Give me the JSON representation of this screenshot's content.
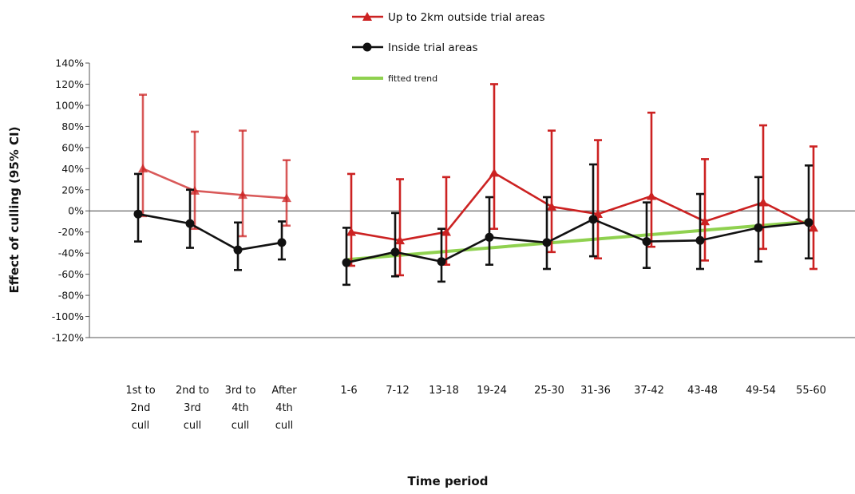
{
  "chart_data": {
    "type": "line",
    "ylabel": "Effect of culling (95% CI)",
    "xlabel": "Time period",
    "ylim": [
      -120,
      140
    ],
    "y_ticks": [
      "140%",
      "120%",
      "100%",
      "80%",
      "60%",
      "40%",
      "20%",
      "0%",
      "-20%",
      "-40%",
      "-60%",
      "-80%",
      "-100%",
      "-120%"
    ],
    "y_tick_values": [
      140,
      120,
      100,
      80,
      60,
      40,
      20,
      0,
      -20,
      -40,
      -60,
      -80,
      -100,
      -120
    ],
    "reference_line": 0,
    "grid": false,
    "legend_position": "top",
    "categories": [
      "1st to 2nd cull",
      "2nd to 3rd cull",
      "3rd to 4th cull",
      "After 4th cull",
      "1-6",
      "7-12",
      "13-18",
      "19-24",
      "25-30",
      "31-36",
      "37-42",
      "43-48",
      "49-54",
      "55-60"
    ],
    "category_lines": [
      [
        "1st to",
        "2nd",
        "cull"
      ],
      [
        "2nd to",
        "3rd",
        "cull"
      ],
      [
        "3rd to",
        "4th",
        "cull"
      ],
      [
        "After",
        "4th",
        "cull"
      ],
      [
        "1-6"
      ],
      [
        "7-12"
      ],
      [
        "13-18"
      ],
      [
        "19-24"
      ],
      [
        "25-30"
      ],
      [
        "31-36"
      ],
      [
        "37-42"
      ],
      [
        "43-48"
      ],
      [
        "49-54"
      ],
      [
        "55-60"
      ]
    ],
    "series": [
      {
        "name": "Up to 2km outside trial areas",
        "color": "#cc2222",
        "marker": "triangle",
        "groups": [
          {
            "values": [
              40,
              19,
              15,
              12
            ],
            "ci_upper": [
              110,
              75,
              76,
              48
            ],
            "ci_lower": [
              -5,
              -17,
              -24,
              -14
            ]
          },
          {
            "values": [
              -20,
              -28,
              -20,
              36,
              4,
              -3,
              14,
              -10,
              8,
              -16
            ],
            "ci_upper": [
              35,
              30,
              32,
              120,
              76,
              67,
              93,
              49,
              81,
              61
            ],
            "ci_lower": [
              -52,
              -61,
              -51,
              -17,
              -39,
              -45,
              -34,
              -47,
              -36,
              -55
            ]
          }
        ]
      },
      {
        "name": "Inside trial areas",
        "color": "#111111",
        "marker": "circle",
        "groups": [
          {
            "values": [
              -3,
              -12,
              -37,
              -30
            ],
            "ci_upper": [
              35,
              20,
              -11,
              -10
            ],
            "ci_lower": [
              -29,
              -35,
              -56,
              -46
            ]
          },
          {
            "values": [
              -49,
              -39,
              -48,
              -25,
              -30,
              -8,
              -29,
              -28,
              -16,
              -11
            ],
            "ci_upper": [
              -16,
              -2,
              -17,
              13,
              13,
              44,
              8,
              16,
              32,
              43
            ],
            "ci_lower": [
              -70,
              -62,
              -67,
              -51,
              -55,
              -43,
              -54,
              -55,
              -48,
              -45
            ]
          }
        ]
      },
      {
        "name": "fitted trend",
        "color": "#8fd14f",
        "marker": "none",
        "from_category": "1-6",
        "to_category": "55-60",
        "start_value": -46,
        "end_value": -10
      }
    ]
  }
}
